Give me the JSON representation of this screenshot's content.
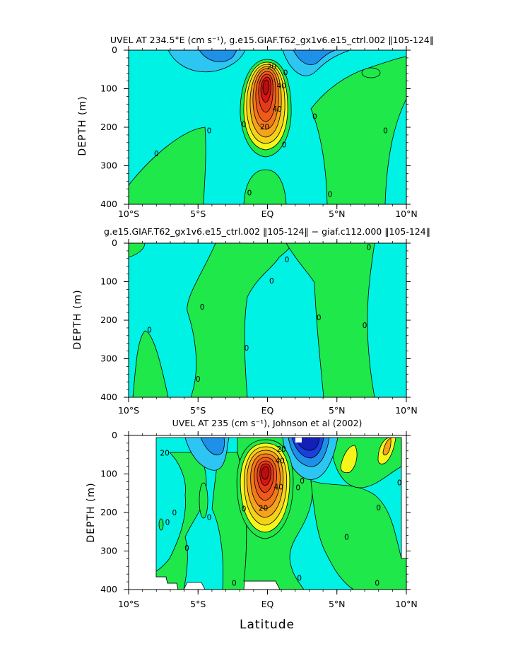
{
  "colors": {
    "cyan": "#00f2e4",
    "green": "#1fe84a",
    "light_blue": "#2dc6f2",
    "mid_blue": "#1e90e8",
    "deep_blue": "#1a3fe0",
    "yellow": "#f5f51a",
    "orange": "#f5a31a",
    "red_orange": "#ef5a1a",
    "red": "#d81414",
    "dark_red": "#b80e0e",
    "contour_line": "#000000"
  },
  "xlabel": "Latitude",
  "chart_data": [
    {
      "type": "heatmap",
      "title": "UVEL AT 234.5°E (cm s⁻¹), g.e15.GIAF.T62_gx1v6.e15_ctrl.002 ‖105-124‖",
      "ylabel": "DEPTH (m)",
      "xlim": [
        -10,
        10
      ],
      "ylim": [
        400,
        0
      ],
      "x_ticks": [
        "10°S",
        "5°S",
        "EQ",
        "5°N",
        "10°N"
      ],
      "y_ticks": [
        "0",
        "100",
        "200",
        "300",
        "400"
      ],
      "contour_labels": [
        {
          "text": "20",
          "lat": 0.3,
          "depth": 42
        },
        {
          "text": "40",
          "lat": 1.0,
          "depth": 92
        },
        {
          "text": "40",
          "lat": 0.7,
          "depth": 152
        },
        {
          "text": "20",
          "lat": -0.2,
          "depth": 198
        },
        {
          "text": "0",
          "lat": 1.3,
          "depth": 58
        },
        {
          "text": "0",
          "lat": -1.7,
          "depth": 192
        },
        {
          "text": "0",
          "lat": -4.2,
          "depth": 208
        },
        {
          "text": "0",
          "lat": -8.0,
          "depth": 268
        },
        {
          "text": "0",
          "lat": 3.4,
          "depth": 172
        },
        {
          "text": "0",
          "lat": 8.5,
          "depth": 208
        },
        {
          "text": "0",
          "lat": 1.2,
          "depth": 245
        },
        {
          "text": "0",
          "lat": -1.3,
          "depth": 370
        },
        {
          "text": "0",
          "lat": 4.5,
          "depth": 373
        }
      ],
      "core": {
        "max_cm_s": 90,
        "lat": 0,
        "depth": 110
      }
    },
    {
      "type": "heatmap",
      "title": "g.e15.GIAF.T62_gx1v6.e15_ctrl.002 ‖105-124‖ − giaf.c112.000 ‖105-124‖",
      "ylabel": "DEPTH (m)",
      "xlim": [
        -10,
        10
      ],
      "ylim": [
        400,
        0
      ],
      "x_ticks": [
        "10°S",
        "5°S",
        "EQ",
        "5°N",
        "10°N"
      ],
      "y_ticks": [
        "0",
        "100",
        "200",
        "300",
        "400"
      ],
      "contour_labels": [
        {
          "text": "0",
          "lat": -8.5,
          "depth": 225
        },
        {
          "text": "0",
          "lat": -4.7,
          "depth": 165
        },
        {
          "text": "0",
          "lat": -5.0,
          "depth": 352
        },
        {
          "text": "0",
          "lat": -1.5,
          "depth": 272
        },
        {
          "text": "0",
          "lat": 0.3,
          "depth": 97
        },
        {
          "text": "0",
          "lat": 1.4,
          "depth": 42
        },
        {
          "text": "0",
          "lat": 3.7,
          "depth": 193
        },
        {
          "text": "0",
          "lat": 7.0,
          "depth": 213
        },
        {
          "text": "0",
          "lat": 7.3,
          "depth": 10
        }
      ]
    },
    {
      "type": "heatmap",
      "title": "UVEL AT 235 (cm s⁻¹), Johnson et al (2002)",
      "ylabel": "DEPTH (m)",
      "xlim": [
        -10,
        10
      ],
      "ylim": [
        400,
        0
      ],
      "x_ticks": [
        "10°S",
        "5°S",
        "EQ",
        "5°N",
        "10°N"
      ],
      "y_ticks": [
        "0",
        "100",
        "200",
        "300",
        "400"
      ],
      "contour_labels": [
        {
          "text": "20",
          "lat": -7.4,
          "depth": 45
        },
        {
          "text": "20",
          "lat": 1.0,
          "depth": 35
        },
        {
          "text": "40",
          "lat": 0.9,
          "depth": 65
        },
        {
          "text": "40",
          "lat": 0.8,
          "depth": 133
        },
        {
          "text": "20",
          "lat": -0.3,
          "depth": 188
        },
        {
          "text": "0",
          "lat": -6.7,
          "depth": 200
        },
        {
          "text": "0",
          "lat": -7.2,
          "depth": 225
        },
        {
          "text": "0",
          "lat": -5.8,
          "depth": 292
        },
        {
          "text": "0",
          "lat": -4.2,
          "depth": 212
        },
        {
          "text": "0",
          "lat": -1.7,
          "depth": 190
        },
        {
          "text": "0",
          "lat": 2.2,
          "depth": 135
        },
        {
          "text": "0",
          "lat": 2.5,
          "depth": 117
        },
        {
          "text": "0",
          "lat": 5.7,
          "depth": 263
        },
        {
          "text": "0",
          "lat": 8.0,
          "depth": 187
        },
        {
          "text": "0",
          "lat": 9.5,
          "depth": 122
        },
        {
          "text": "0",
          "lat": -2.4,
          "depth": 383
        },
        {
          "text": "0",
          "lat": 2.3,
          "depth": 370
        },
        {
          "text": "0",
          "lat": 7.9,
          "depth": 383
        }
      ],
      "core": {
        "max_cm_s": 90,
        "lat": -0.2,
        "depth": 85
      }
    }
  ]
}
